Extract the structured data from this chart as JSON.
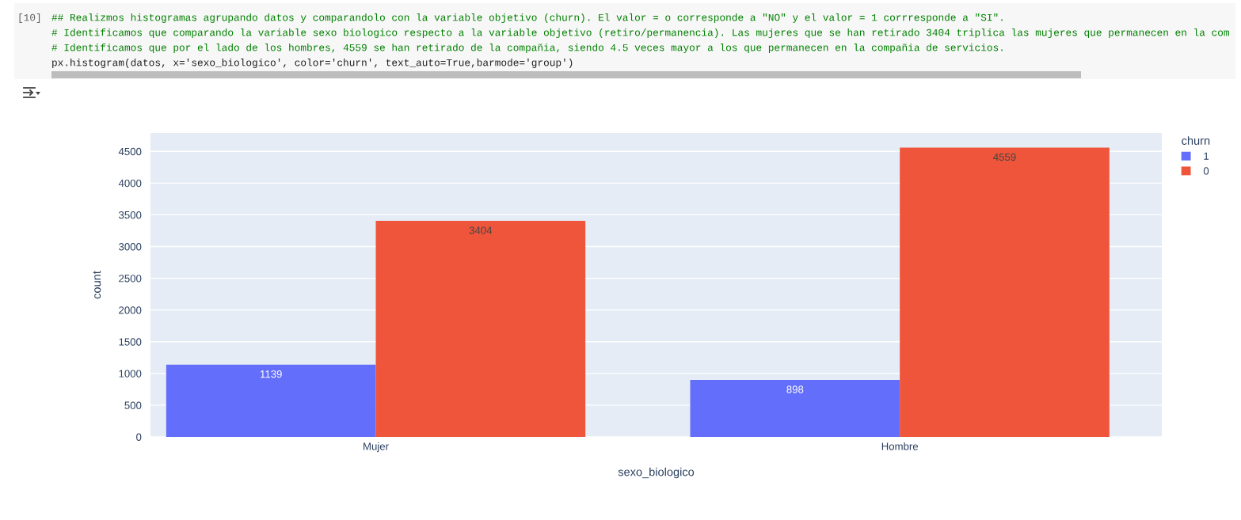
{
  "chart_data": {
    "type": "bar",
    "xlabel": "sexo_biologico",
    "ylabel": "count",
    "legend_title": "churn",
    "categories": [
      "Mujer",
      "Hombre"
    ],
    "series": [
      {
        "name": "1",
        "color": "#636efa",
        "values": [
          1139,
          898
        ]
      },
      {
        "name": "0",
        "color": "#ef553b",
        "values": [
          3404,
          4559
        ]
      }
    ],
    "ylim": [
      0,
      4790
    ],
    "yticks": [
      0,
      500,
      1000,
      1500,
      2000,
      2500,
      3000,
      3500,
      4000,
      4500
    ],
    "grid": "y",
    "legend": "top right",
    "data_labels": true,
    "annotations": [
      "[10]",
      "## Realizmos histogramas agrupando datos y comparandolo con la variable objetivo (churn). El valor = o corresponde a \"NO\" y el valor = 1 corrresponde a \"SI\".",
      "# Identificamos que comparando la variable sexo biologico respecto a la variable objetivo (retiro/permanencia). Las mujeres que se han retirado 3404 triplica las mujeres que permanecen en la com",
      "# Identificamos que por el lado de los hombres, 4559 se han retirado de la compañia, siendo 4.5 veces mayor a los que permanecen en la compañia de servicios.",
      "px.histogram(datos, x='sexo_biologico', color='churn', text_auto=True,barmode='group')"
    ]
  }
}
